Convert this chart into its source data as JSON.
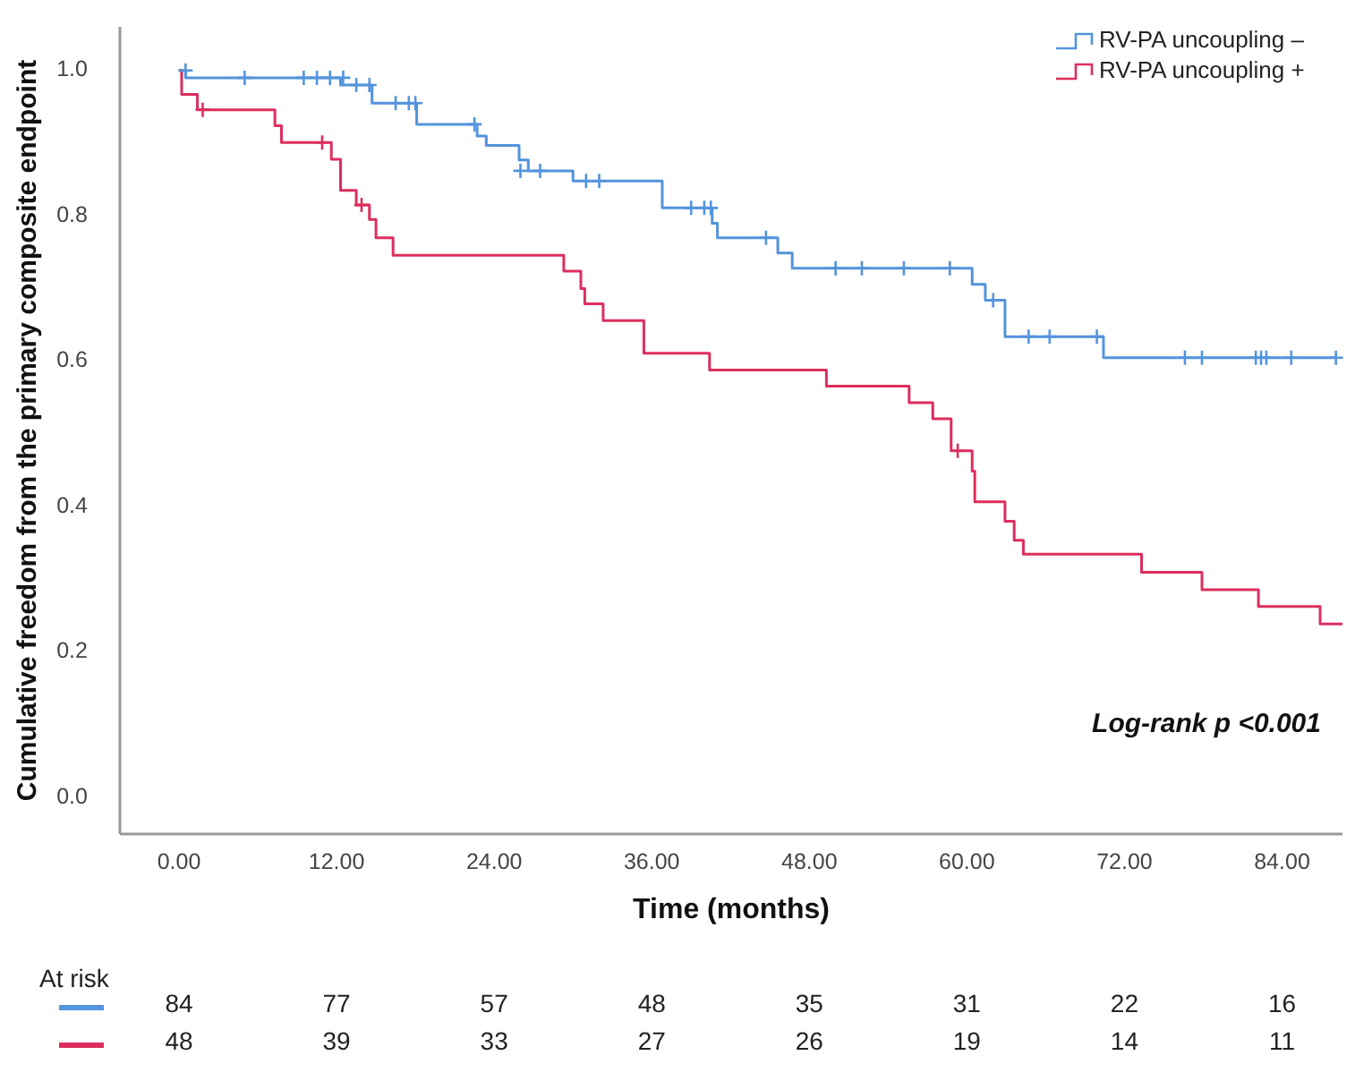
{
  "chart_data": {
    "type": "step",
    "ylabel": "Cumulative freedom from the primary composite endpoint",
    "xlabel": "Time (months)",
    "xlim": [
      -4.5,
      88.6
    ],
    "ylim": [
      -0.05,
      1.06
    ],
    "xticks": [
      {
        "value": 0,
        "label": "0.00"
      },
      {
        "value": 12,
        "label": "12.00"
      },
      {
        "value": 24,
        "label": "24.00"
      },
      {
        "value": 36,
        "label": "36.00"
      },
      {
        "value": 48,
        "label": "48.00"
      },
      {
        "value": 60,
        "label": "60.00"
      },
      {
        "value": 72,
        "label": "72.00"
      },
      {
        "value": 84,
        "label": "84.00"
      }
    ],
    "yticks": [
      {
        "value": 0,
        "label": "0.0"
      },
      {
        "value": 0.2,
        "label": "0.2"
      },
      {
        "value": 0.4,
        "label": "0.4"
      },
      {
        "value": 0.6,
        "label": "0.6"
      },
      {
        "value": 0.8,
        "label": "0.8"
      },
      {
        "value": 1,
        "label": "1.0"
      }
    ],
    "grid": false,
    "legend": "top right",
    "series": [
      {
        "name": "RV-PA uncoupling –",
        "color": "#5394dc",
        "x": [
          0,
          0.5,
          12.3,
          14.7,
          18.1,
          22.7,
          23.4,
          25.9,
          26.6,
          30.0,
          36.8,
          40.6,
          41.0,
          45.6,
          46.7,
          60.4,
          61.4,
          62.9,
          70.4,
          88.1
        ],
        "values": [
          1.0,
          0.99,
          0.98,
          0.955,
          0.926,
          0.91,
          0.897,
          0.877,
          0.862,
          0.848,
          0.811,
          0.79,
          0.77,
          0.749,
          0.728,
          0.706,
          0.684,
          0.634,
          0.605,
          0.605
        ]
      },
      {
        "name": "RV-PA uncoupling +",
        "color": "#dc2e5e",
        "x": [
          0,
          0.2,
          1.4,
          7.3,
          7.8,
          11.6,
          12.3,
          13.5,
          14.5,
          15.0,
          16.3,
          29.3,
          30.6,
          30.9,
          32.3,
          35.4,
          40.4,
          49.3,
          55.6,
          57.4,
          58.8,
          60.4,
          60.6,
          62.9,
          63.6,
          64.3,
          73.3,
          77.9,
          82.2,
          86.9,
          88.6
        ],
        "values": [
          1.0,
          0.967,
          0.946,
          0.924,
          0.901,
          0.878,
          0.835,
          0.815,
          0.795,
          0.77,
          0.746,
          0.724,
          0.7,
          0.679,
          0.656,
          0.611,
          0.588,
          0.566,
          0.543,
          0.521,
          0.477,
          0.449,
          0.407,
          0.38,
          0.354,
          0.335,
          0.31,
          0.286,
          0.263,
          0.239,
          0.239
        ]
      },
      {
        "type": "scatter",
        "marker": "cross",
        "color": "#5394dc",
        "x": [
          0.5,
          5,
          9.5,
          10.5,
          11.5,
          12.5,
          13.5,
          14.5,
          16.5,
          17.5,
          18,
          22.5,
          26,
          27.5,
          31,
          32,
          39,
          40,
          40.5,
          44.7,
          50,
          52,
          55.2,
          58.7,
          62.0,
          64.7,
          66.3,
          69.9,
          76.6,
          77.9,
          82.0,
          82.4,
          82.8,
          84.7,
          88.1
        ],
        "values": [
          1.0,
          0.99,
          0.99,
          0.99,
          0.99,
          0.99,
          0.98,
          0.98,
          0.955,
          0.955,
          0.955,
          0.926,
          0.862,
          0.862,
          0.848,
          0.848,
          0.811,
          0.811,
          0.811,
          0.77,
          0.728,
          0.728,
          0.728,
          0.728,
          0.684,
          0.634,
          0.634,
          0.634,
          0.605,
          0.605,
          0.605,
          0.605,
          0.605,
          0.605,
          0.605
        ]
      },
      {
        "type": "scatter",
        "marker": "cross",
        "color": "#dc2e5e",
        "x": [
          1.8,
          10.9,
          13.9,
          59.3
        ],
        "values": [
          0.946,
          0.901,
          0.815,
          0.477
        ]
      }
    ],
    "annotations": [
      "Log-rank p <0.001",
      "At risk",
      "84",
      "77",
      "57",
      "48",
      "35",
      "31",
      "22",
      "16",
      "48",
      "39",
      "33",
      "27",
      "26",
      "19",
      "14",
      "11"
    ]
  }
}
